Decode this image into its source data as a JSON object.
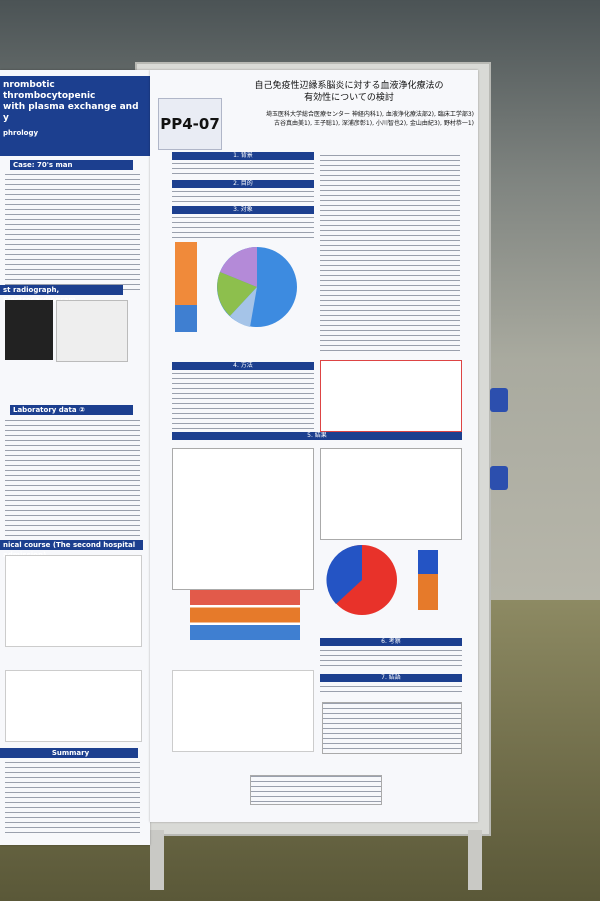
{
  "left_poster": {
    "title_lines": [
      "nrombotic thrombocytopenic",
      "with plasma exchange and",
      "y"
    ],
    "affiliation": "phrology",
    "sections": [
      "Case:  70's man",
      "st radiograph, Electrocardiogram",
      "Laboratory data ②",
      "nical course (The second hospital admission)",
      "Summary"
    ]
  },
  "right_poster": {
    "code": "PP4-07",
    "title_lines": [
      "自己免疫性辺縁系脳炎に対する血液浄化療法の",
      "有効性についての検討"
    ],
    "affiliations": "埼玉医科大学総合医療センター 神経内科1), 血液浄化療法部2), 臨床工学部3)",
    "authors": "古谷真由美1), 王子聡1), 深浦彦彰1), 小川智也2), 金山由紀3), 野村恭一1)",
    "sections": [
      "1. 背景",
      "2. 目的",
      "3. 対象",
      "4. 方法",
      "5. 結果",
      "6. 考察",
      "7. 結語"
    ]
  }
}
